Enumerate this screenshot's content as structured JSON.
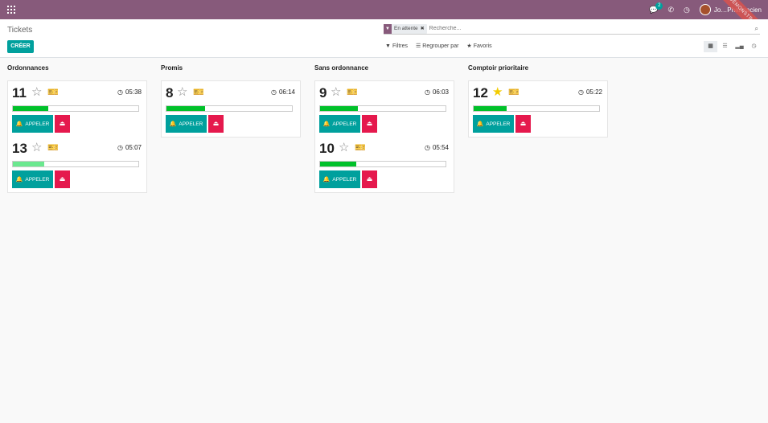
{
  "navbar": {
    "chat_badge": "2",
    "user_name": "Jo…Pharmacien",
    "ribbon": "DÉMONSTRATION"
  },
  "control": {
    "breadcrumb": "Tickets",
    "create_label": "CRÉER",
    "facet_label": "En attente",
    "search_placeholder": "Recherche...",
    "filters_label": "Filtres",
    "group_by_label": "Regrouper par",
    "favorites_label": "Favoris"
  },
  "call_label": "APPELER",
  "columns": [
    {
      "title": "Ordonnances",
      "cards": [
        {
          "number": "11",
          "starred": false,
          "time": "05:38",
          "progress": 0.28,
          "light": false
        },
        {
          "number": "13",
          "starred": false,
          "time": "05:07",
          "progress": 0.25,
          "light": true
        }
      ]
    },
    {
      "title": "Promis",
      "cards": [
        {
          "number": "8",
          "starred": false,
          "time": "06:14",
          "progress": 0.31,
          "light": false
        }
      ]
    },
    {
      "title": "Sans ordonnance",
      "cards": [
        {
          "number": "9",
          "starred": false,
          "time": "06:03",
          "progress": 0.3,
          "light": false
        },
        {
          "number": "10",
          "starred": false,
          "time": "05:54",
          "progress": 0.29,
          "light": false
        }
      ]
    },
    {
      "title": "Comptoir prioritaire",
      "cards": [
        {
          "number": "12",
          "starred": true,
          "time": "05:22",
          "progress": 0.26,
          "light": false
        }
      ]
    }
  ]
}
